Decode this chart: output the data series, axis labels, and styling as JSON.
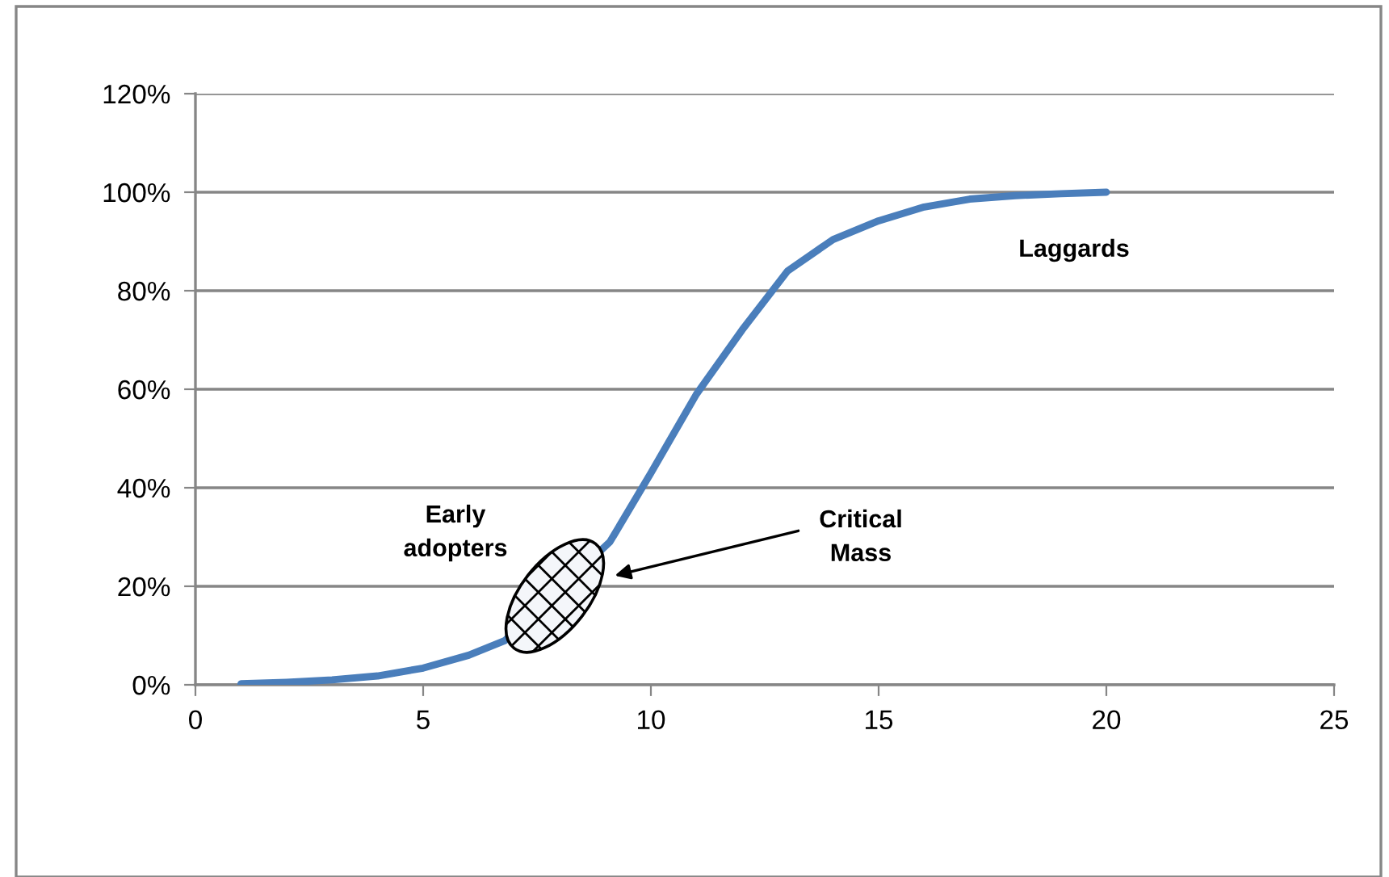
{
  "chart_data": {
    "type": "line",
    "x": [
      1,
      2,
      3,
      4,
      5,
      6,
      6.8,
      9.1,
      10,
      11,
      12,
      13,
      14,
      15,
      16,
      17,
      18,
      19,
      20
    ],
    "series": [
      {
        "color": "#4a7ebb",
        "values": [
          0.2,
          0.5,
          1,
          1.8,
          3.4,
          6,
          9,
          29,
          43,
          59,
          72,
          84,
          90.4,
          94.2,
          97,
          98.6,
          99.3,
          99.7,
          100
        ]
      }
    ],
    "xlim": [
      0,
      25
    ],
    "xticks": [
      0,
      5,
      10,
      15,
      20,
      25
    ],
    "ylim": [
      0,
      120
    ],
    "yticks": [
      {
        "value": 0,
        "label": "0%"
      },
      {
        "value": 20,
        "label": "20%"
      },
      {
        "value": 40,
        "label": "40%"
      },
      {
        "value": 60,
        "label": "60%"
      },
      {
        "value": 80,
        "label": "80%"
      },
      {
        "value": 100,
        "label": "100%"
      },
      {
        "value": 120,
        "label": "120%"
      }
    ],
    "grid": "y",
    "marker": "none",
    "line_style": "solid",
    "annotations": [
      "Early\nadopters",
      "Critical\nMass",
      "Laggards"
    ]
  }
}
